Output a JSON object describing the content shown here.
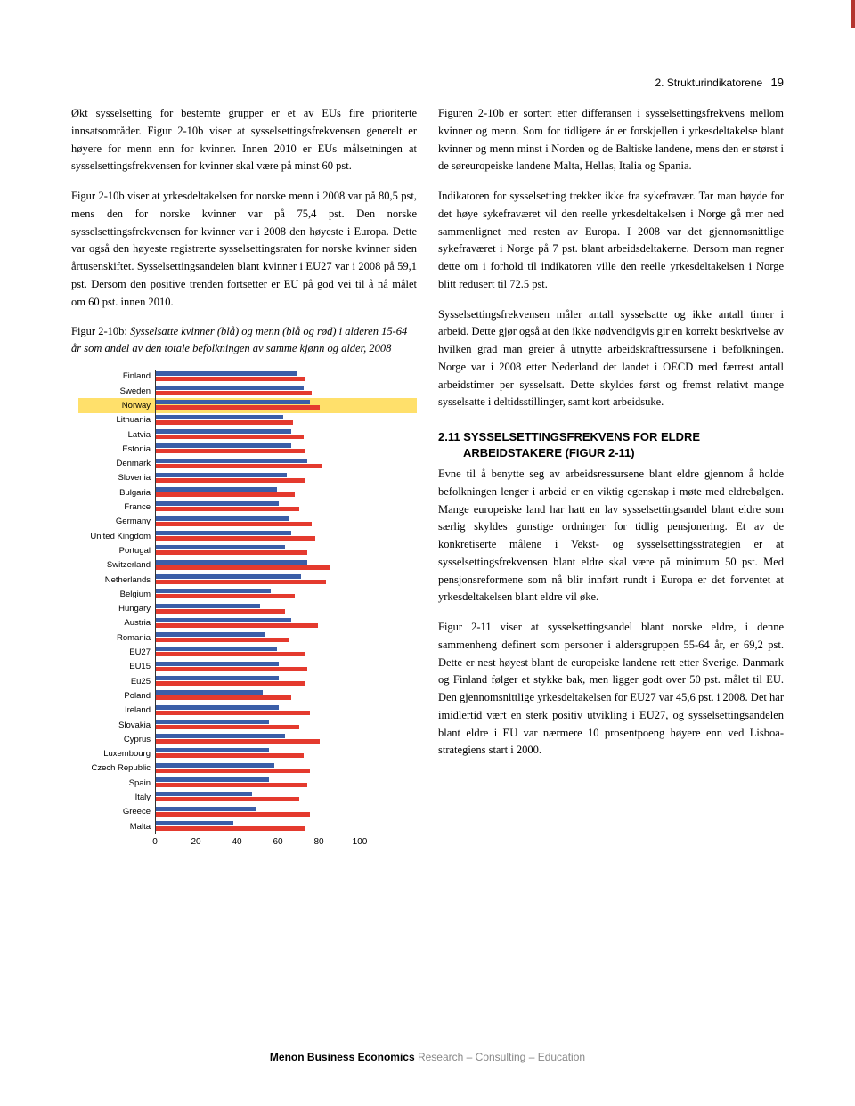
{
  "header": {
    "section": "2. Strukturindikatorene",
    "page": "19"
  },
  "left": {
    "p1": "Økt sysselsetting for bestemte grupper er et av EUs fire prioriterte innsatsområder. Figur 2-10b viser at sysselsettingsfrekvensen generelt er høyere for menn enn for kvinner. Innen 2010 er EUs målsetningen at sysselsettingsfrekvensen for kvinner skal være på minst 60 pst.",
    "p2": "Figur 2-10b viser at yrkesdeltakelsen for norske menn i 2008 var på 80,5 pst, mens den for norske kvinner var på 75,4 pst. Den norske sysselsettingsfrekvensen for kvinner var i 2008 den høyeste i Europa. Dette var også den høyeste registrerte sysselsettingsraten for norske kvinner siden årtusenskiftet. Sysselsettingsandelen blant kvinner i EU27 var i 2008 på 59,1 pst. Dersom den positive trenden fortsetter er EU på god vei til å nå målet om 60 pst. innen 2010.",
    "caption_lead": "Figur 2-10b: ",
    "caption_italic": "Sysselsatte kvinner (blå) og menn (blå og rød) i alderen 15-64 år som andel av den totale befolkningen av samme kjønn og alder, 2008"
  },
  "right": {
    "p1": "Figuren 2-10b er sortert etter differansen i sysselsettingsfrekvens mellom kvinner og menn. Som for tidligere år er forskjellen i yrkesdeltakelse blant kvinner og menn minst i Norden og de Baltiske landene, mens den er størst i de søreuropeiske landene Malta, Hellas, Italia og Spania.",
    "p2": "Indikatoren for sysselsetting trekker ikke fra sykefravær. Tar man høyde for det høye sykefraværet vil den reelle yrkesdeltakelsen i Norge gå mer ned sammenlignet med resten av Europa. I 2008 var det gjennomsnittlige sykefraværet i Norge på 7 pst. blant arbeidsdeltakerne. Dersom man regner dette om i forhold til indikatoren ville den reelle yrkesdeltakelsen i Norge blitt redusert til 72.5 pst.",
    "p3": "Sysselsettingsfrekvensen måler antall sysselsatte og ikke antall timer i arbeid. Dette gjør også at den ikke nødvendigvis gir en korrekt beskrivelse av hvilken grad man greier å utnytte arbeidskraftressursene i befolkningen. Norge var i 2008 etter Nederland det landet i OECD med færrest antall arbeidstimer per sysselsatt. Dette skyldes først og fremst relativt mange sysselsatte i deltidsstillinger, samt kort arbeidsuke.",
    "section_head_1": "2.11 SYSSELSETTINGSFREKVENS FOR ELDRE",
    "section_head_2": "ARBEIDSTAKERE (FIGUR 2-11)",
    "p4": "Evne til å benytte seg av arbeidsressursene blant eldre gjennom å holde befolkningen lenger i arbeid er en viktig egenskap i møte med eldrebølgen. Mange europeiske land har hatt en lav sysselsettingsandel blant eldre som særlig skyldes gunstige ordninger for tidlig pensjonering. Et av de konkretiserte målene i Vekst- og sysselsettingsstrategien er at sysselsettingsfrekvensen blant eldre skal være på minimum 50 pst. Med pensjonsreformene som nå blir innført rundt i Europa er det forventet at yrkesdeltakelsen blant eldre vil øke.",
    "p5": "Figur 2-11 viser at sysselsettingsandel blant norske eldre, i denne sammenheng definert som personer i aldersgruppen 55-64 år, er 69,2 pst. Dette er nest høyest blant de europeiske landene rett etter Sverige. Danmark og Finland følger et stykke bak, men ligger godt over 50 pst. målet til EU. Den gjennomsnittlige yrkesdeltakelsen for EU27 var 45,6 pst. i 2008. Det har imidlertid vært en sterk positiv utvikling i EU27, og sysselsettingsandelen blant eldre i EU var nærmere 10 prosentpoeng høyere enn ved Lisboa-strategiens start i 2000."
  },
  "chart": {
    "xmax": 100,
    "blue": "#3b5ea8",
    "red": "#e43a2e",
    "highlight": "#ffe06b",
    "axis_ticks": [
      0,
      20,
      40,
      60,
      80,
      100
    ],
    "rows": [
      {
        "label": "Finland",
        "b": 69,
        "r": 73,
        "hl": false
      },
      {
        "label": "Sweden",
        "b": 72,
        "r": 76,
        "hl": false
      },
      {
        "label": "Norway",
        "b": 75,
        "r": 80,
        "hl": true
      },
      {
        "label": "Lithuania",
        "b": 62,
        "r": 67,
        "hl": false
      },
      {
        "label": "Latvia",
        "b": 66,
        "r": 72,
        "hl": false
      },
      {
        "label": "Estonia",
        "b": 66,
        "r": 73,
        "hl": false
      },
      {
        "label": "Denmark",
        "b": 74,
        "r": 81,
        "hl": false
      },
      {
        "label": "Slovenia",
        "b": 64,
        "r": 73,
        "hl": false
      },
      {
        "label": "Bulgaria",
        "b": 59,
        "r": 68,
        "hl": false
      },
      {
        "label": "France",
        "b": 60,
        "r": 70,
        "hl": false
      },
      {
        "label": "Germany",
        "b": 65,
        "r": 76,
        "hl": false
      },
      {
        "label": "United Kingdom",
        "b": 66,
        "r": 78,
        "hl": false
      },
      {
        "label": "Portugal",
        "b": 63,
        "r": 74,
        "hl": false
      },
      {
        "label": "Switzerland",
        "b": 74,
        "r": 85,
        "hl": false
      },
      {
        "label": "Netherlands",
        "b": 71,
        "r": 83,
        "hl": false
      },
      {
        "label": "Belgium",
        "b": 56,
        "r": 68,
        "hl": false
      },
      {
        "label": "Hungary",
        "b": 51,
        "r": 63,
        "hl": false
      },
      {
        "label": "Austria",
        "b": 66,
        "r": 79,
        "hl": false
      },
      {
        "label": "Romania",
        "b": 53,
        "r": 65,
        "hl": false
      },
      {
        "label": "EU27",
        "b": 59,
        "r": 73,
        "hl": false
      },
      {
        "label": "EU15",
        "b": 60,
        "r": 74,
        "hl": false
      },
      {
        "label": "Eu25",
        "b": 60,
        "r": 73,
        "hl": false
      },
      {
        "label": "Poland",
        "b": 52,
        "r": 66,
        "hl": false
      },
      {
        "label": "Ireland",
        "b": 60,
        "r": 75,
        "hl": false
      },
      {
        "label": "Slovakia",
        "b": 55,
        "r": 70,
        "hl": false
      },
      {
        "label": "Cyprus",
        "b": 63,
        "r": 80,
        "hl": false
      },
      {
        "label": "Luxembourg",
        "b": 55,
        "r": 72,
        "hl": false
      },
      {
        "label": "Czech Republic",
        "b": 58,
        "r": 75,
        "hl": false
      },
      {
        "label": "Spain",
        "b": 55,
        "r": 74,
        "hl": false
      },
      {
        "label": "Italy",
        "b": 47,
        "r": 70,
        "hl": false
      },
      {
        "label": "Greece",
        "b": 49,
        "r": 75,
        "hl": false
      },
      {
        "label": "Malta",
        "b": 38,
        "r": 73,
        "hl": false
      }
    ]
  },
  "footer": {
    "bold": "Menon Business Economics",
    "light": " Research – Consulting – Education"
  }
}
